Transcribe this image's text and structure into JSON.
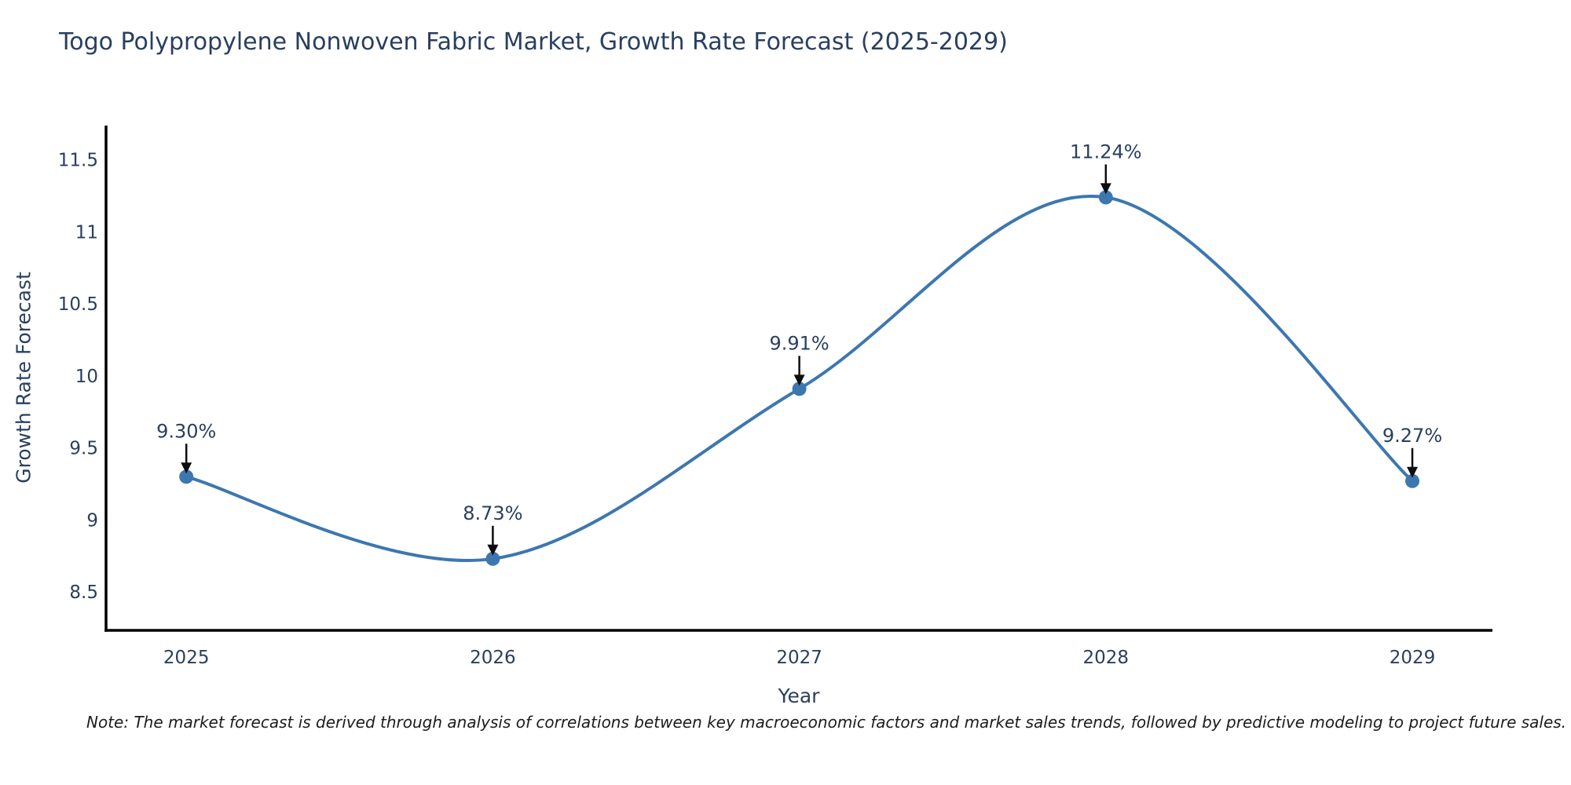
{
  "chart": {
    "title": "Togo Polypropylene Nonwoven Fabric Market, Growth Rate Forecast (2025-2029)",
    "xlabel": "Year",
    "ylabel": "Growth Rate Forecast",
    "note": "Note: The market forecast is derived through analysis of correlations between key macroeconomic factors and market sales trends, followed by predictive modeling to project future sales.",
    "colors": {
      "line": "#3d77b0",
      "marker": "#3d77b0",
      "axis": "#000000",
      "text": "#2a3f5f",
      "arrow": "#0d0d0d",
      "background": "#ffffff"
    }
  },
  "chart_data": {
    "type": "line",
    "title": "Togo Polypropylene Nonwoven Fabric Market, Growth Rate Forecast (2025-2029)",
    "xlabel": "Year",
    "ylabel": "Growth Rate Forecast",
    "x": [
      2025,
      2026,
      2027,
      2028,
      2029
    ],
    "x_tick_labels": [
      "2025",
      "2026",
      "2027",
      "2028",
      "2029"
    ],
    "series": [
      {
        "name": "Growth Rate Forecast",
        "values": [
          9.3,
          8.73,
          9.91,
          11.24,
          9.27
        ],
        "point_labels": [
          "9.30%",
          "8.73%",
          "9.91%",
          "11.24%",
          "9.27%"
        ]
      }
    ],
    "y_ticks": [
      8.5,
      9,
      9.5,
      10,
      10.5,
      11,
      11.5
    ],
    "y_tick_labels": [
      "8.5",
      "9",
      "9.5",
      "10",
      "10.5",
      "11",
      "11.5"
    ],
    "ylim": [
      8.23,
      11.73
    ],
    "line_shape": "spline",
    "grid": false,
    "legend_position": "none",
    "annotations": "value labels with down arrows above each point"
  }
}
